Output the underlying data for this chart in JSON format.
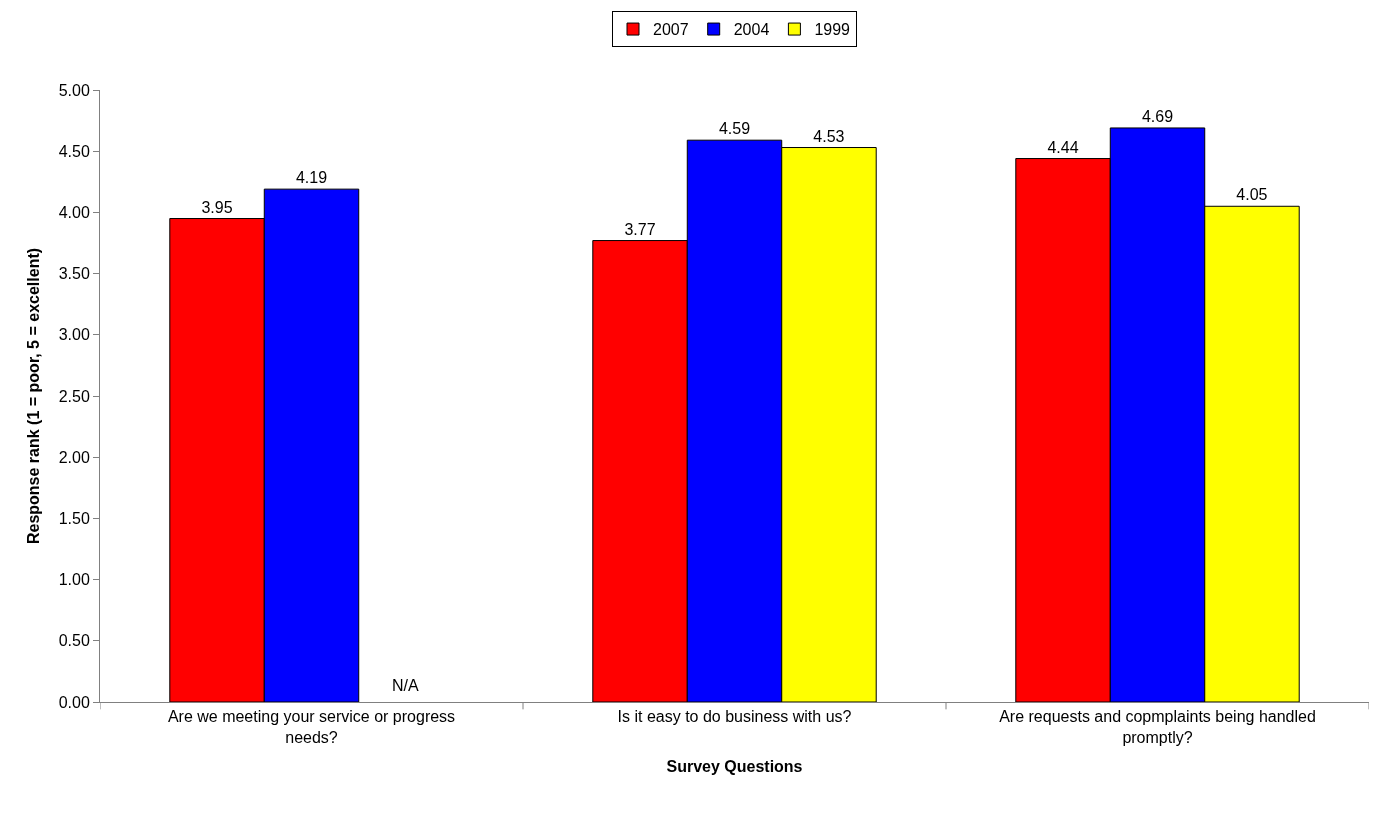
{
  "chart_data": {
    "type": "bar",
    "xlabel": "Survey Questions",
    "ylabel": "Response rank (1 = poor, 5 = excellent)",
    "categories": [
      "Are we meeting your service or progress needs?",
      "Is it easy to do business with us?",
      "Are requests and copmplaints being handled promptly?"
    ],
    "series": [
      {
        "name": "2007",
        "color": "#ff0000",
        "values": [
          3.95,
          3.77,
          4.44
        ],
        "value_labels": [
          "3.95",
          "3.77",
          "4.44"
        ]
      },
      {
        "name": "2004",
        "color": "#0000ff",
        "values": [
          4.19,
          4.59,
          4.69
        ],
        "value_labels": [
          "4.19",
          "4.59",
          "4.69"
        ]
      },
      {
        "name": "1999",
        "color": "#ffff00",
        "values": [
          null,
          4.53,
          4.05
        ],
        "value_labels": [
          "N/A",
          "4.53",
          "4.05"
        ]
      }
    ],
    "ylim": [
      0,
      5
    ],
    "yticks": [
      {
        "value": 0,
        "label": "0.00"
      },
      {
        "value": 0.5,
        "label": "0.50"
      },
      {
        "value": 1,
        "label": "1.00"
      },
      {
        "value": 1.5,
        "label": "1.50"
      },
      {
        "value": 2,
        "label": "2.00"
      },
      {
        "value": 2.5,
        "label": "2.50"
      },
      {
        "value": 3,
        "label": "3.00"
      },
      {
        "value": 3.5,
        "label": "3.50"
      },
      {
        "value": 4,
        "label": "4.00"
      },
      {
        "value": 4.5,
        "label": "4.50"
      },
      {
        "value": 5,
        "label": "5.00"
      }
    ],
    "grid": false,
    "legend": "top"
  }
}
